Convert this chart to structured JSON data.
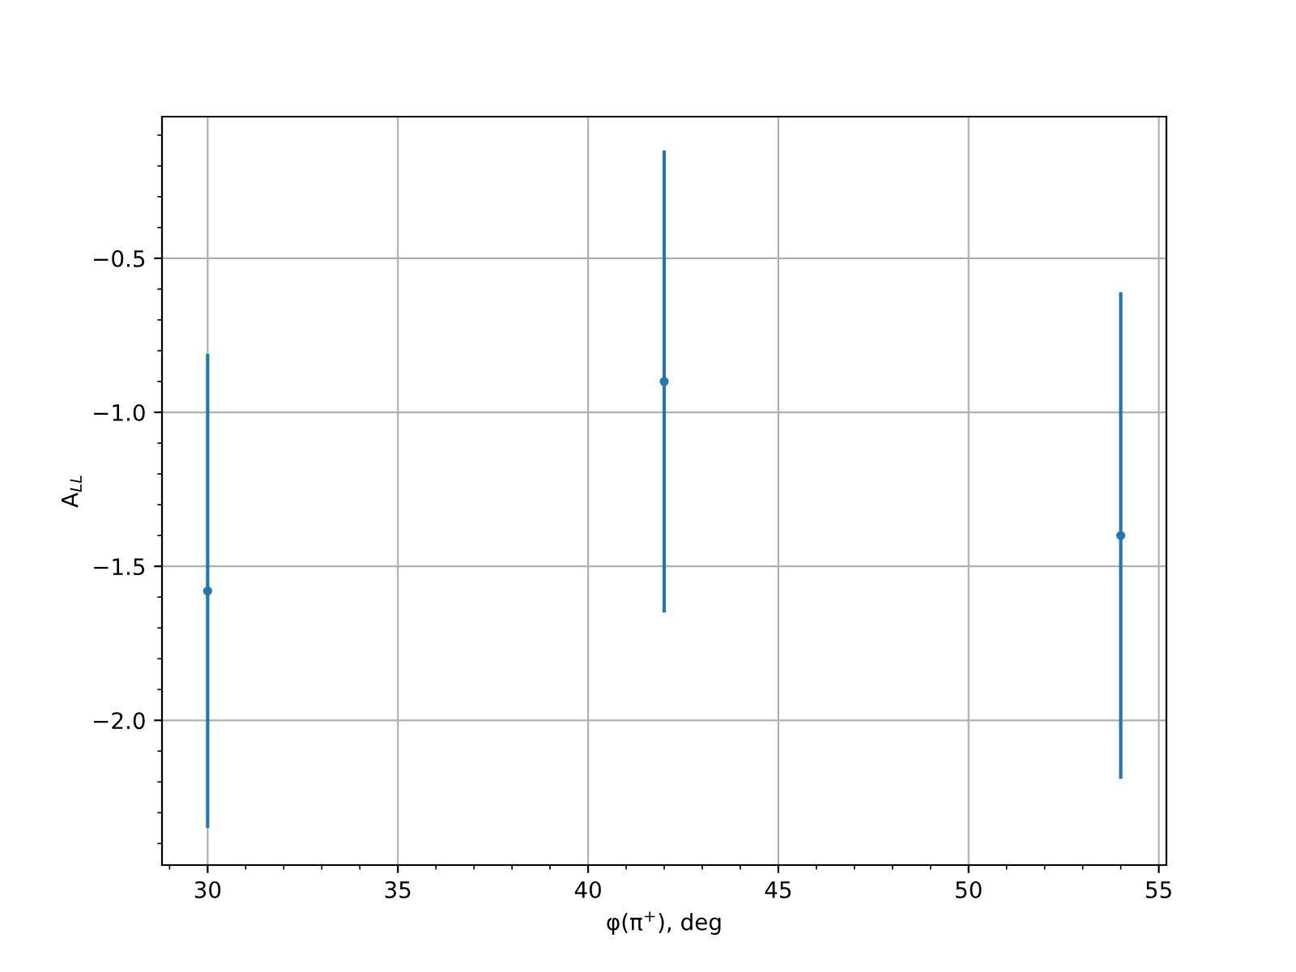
{
  "chart_data": {
    "type": "scatter",
    "xlabel": "φ(π$^{+}$), deg",
    "ylabel": "A$_{LL}$",
    "x": [
      30,
      42,
      54
    ],
    "values": [
      -1.58,
      -0.9,
      -1.4
    ],
    "errors": [
      0.77,
      0.75,
      0.79
    ],
    "color": "#1f77b4",
    "marker": "circle",
    "xlim": [
      28.8,
      55.2
    ],
    "xticks": [
      30,
      35,
      40,
      45,
      50,
      55
    ],
    "ylim": [
      -2.47,
      -0.04
    ],
    "yticks": [
      {
        "value": -2.0,
        "label": "−2.0"
      },
      {
        "value": -1.5,
        "label": "−1.5"
      },
      {
        "value": -1.0,
        "label": "−1.0"
      },
      {
        "value": -0.5,
        "label": "−0.5"
      }
    ],
    "grid": true
  }
}
